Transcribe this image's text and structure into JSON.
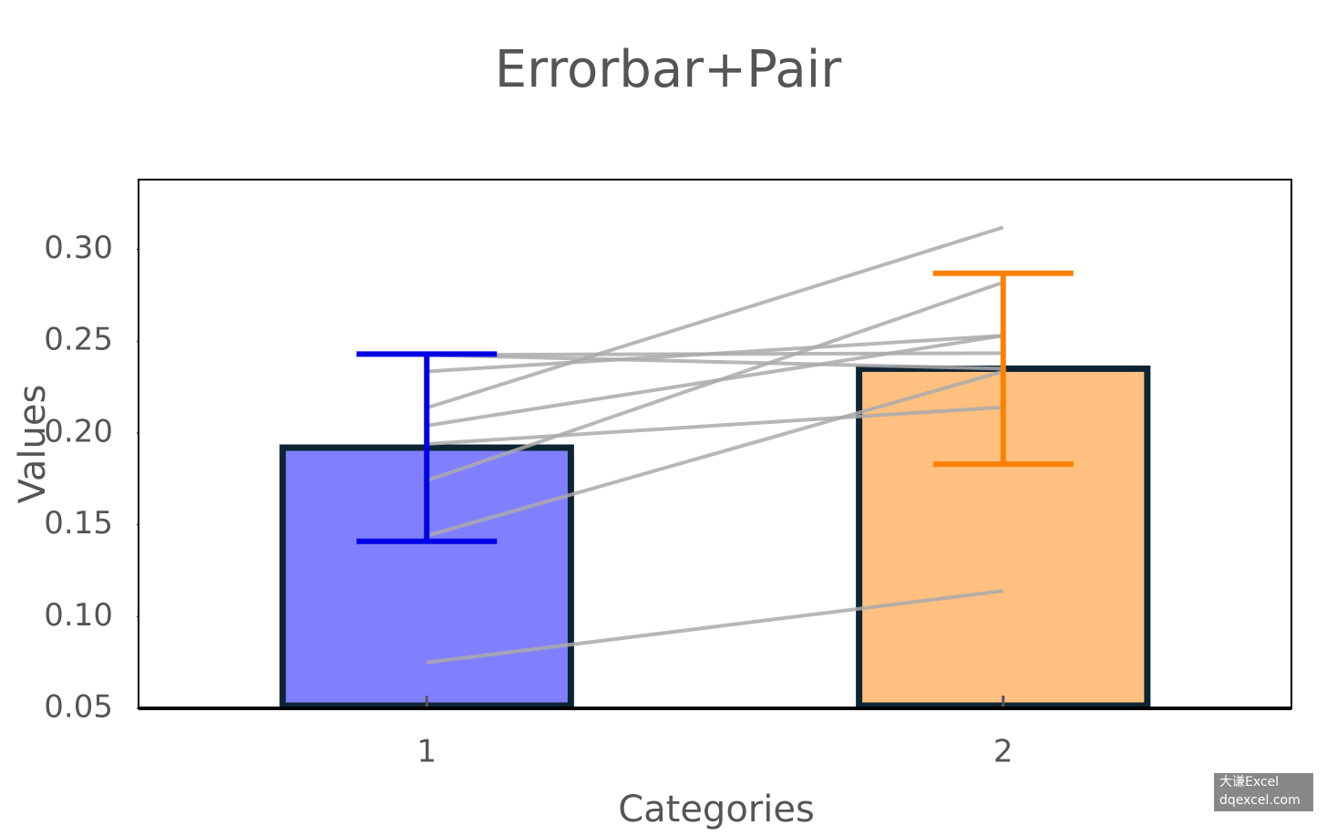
{
  "chart_data": {
    "type": "bar",
    "title": "Errorbar+Pair",
    "x_label": "Categories",
    "y_label": "Values",
    "categories": [
      "1",
      "2"
    ],
    "values": [
      0.192,
      0.235
    ],
    "errors": [
      0.051,
      0.052
    ],
    "colors": [
      "#8080ff",
      "#ffc080"
    ],
    "error_colors": [
      "#0000e6",
      "#ff8000"
    ],
    "edge_color": "#0d2433",
    "pair_color": "#aaaaaa",
    "pairs": [
      [
        0.2137,
        0.312
      ],
      [
        0.174,
        0.282
      ],
      [
        0.2335,
        0.253
      ],
      [
        0.204,
        0.253
      ],
      [
        0.2425,
        0.235
      ],
      [
        0.2425,
        0.2435
      ],
      [
        0.194,
        0.214
      ],
      [
        0.144,
        0.2335
      ],
      [
        0.075,
        0.114
      ]
    ],
    "ylim": [
      0.05,
      0.338
    ],
    "yticks": [
      0.05,
      {
        "value": 0.1,
        "label": "0.10"
      },
      0.15,
      {
        "value": 0.2,
        "label": "0.20"
      },
      0.25,
      {
        "value": 0.3,
        "label": "0.30"
      }
    ],
    "watermark": [
      "大谦Excel",
      "dqexcel.com"
    ]
  }
}
